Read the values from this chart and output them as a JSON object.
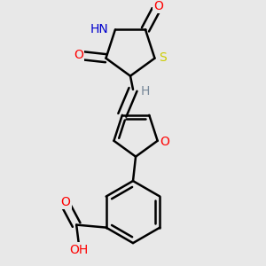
{
  "bg_color": "#e8e8e8",
  "bond_color": "#000000",
  "bond_width": 1.8,
  "atom_colors": {
    "O": "#ff0000",
    "N": "#0000cd",
    "S": "#cccc00",
    "H": "#778899",
    "C": "#000000"
  },
  "font_size": 10,
  "figsize": [
    3.0,
    3.0
  ],
  "dpi": 100
}
